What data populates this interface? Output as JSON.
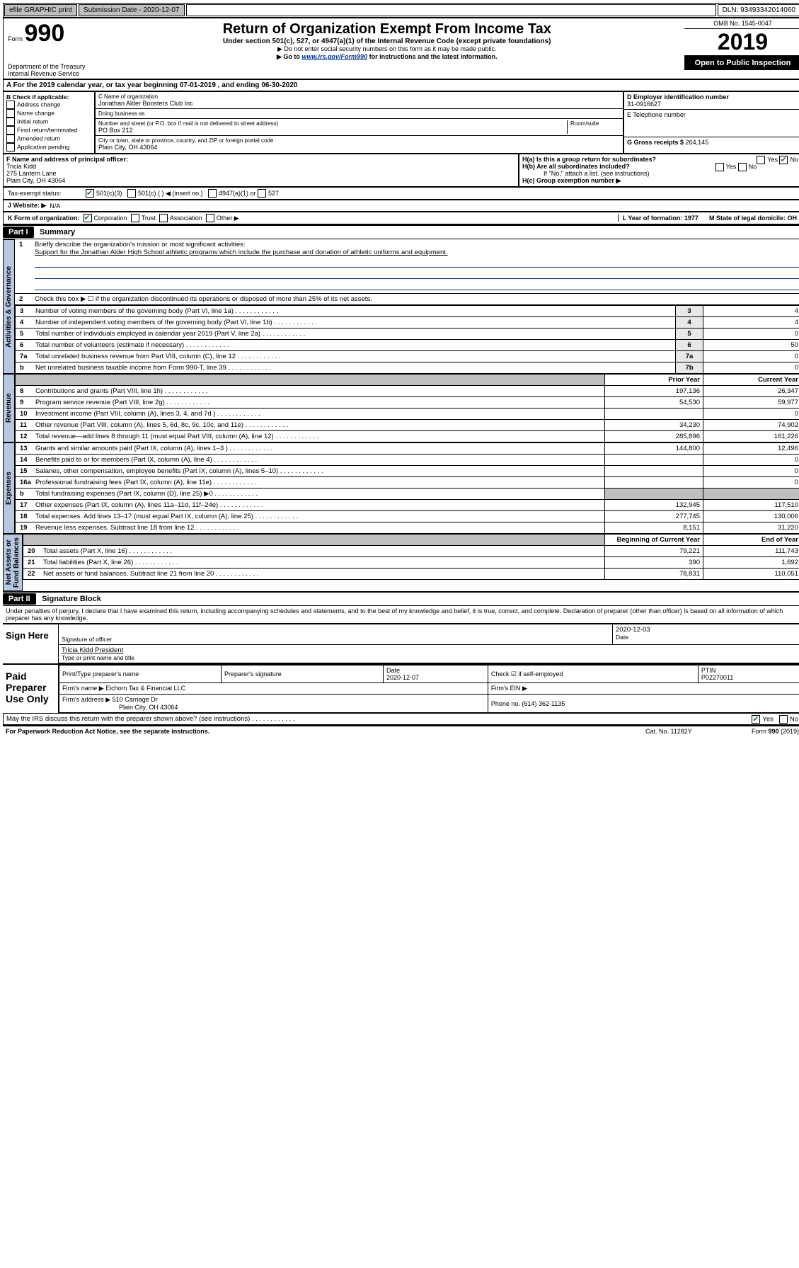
{
  "topbar": {
    "efile": "efile GRAPHIC print",
    "submission_label": "Submission Date - 2020-12-07",
    "dln": "DLN: 93493342014060"
  },
  "header": {
    "form_word": "Form",
    "form_num": "990",
    "title": "Return of Organization Exempt From Income Tax",
    "sub1": "Under section 501(c), 527, or 4947(a)(1) of the Internal Revenue Code (except private foundations)",
    "sub2": "▶ Do not enter social security numbers on this form as it may be made public.",
    "sub3_pre": "▶ Go to ",
    "sub3_link": "www.irs.gov/Form990",
    "sub3_post": " for instructions and the latest information.",
    "dept": "Department of the Treasury\nInternal Revenue Service",
    "omb": "OMB No. 1545-0047",
    "year": "2019",
    "open": "Open to Public Inspection"
  },
  "row_a": "A   For the 2019 calendar year, or tax year beginning 07-01-2019     , and ending 06-30-2020",
  "box_b": {
    "head": "B Check if applicable:",
    "items": [
      "Address change",
      "Name change",
      "Initial return",
      "Final return/terminated",
      "Amended return",
      "Application pending"
    ]
  },
  "box_c": {
    "name_lbl": "C Name of organization",
    "name": "Jonathan Alder Boosters Club Inc",
    "dba_lbl": "Doing business as",
    "dba": "",
    "addr_lbl": "Number and street (or P.O. box if mail is not delivered to street address)",
    "room_lbl": "Room/suite",
    "addr": "PO Box 212",
    "city_lbl": "City or town, state or province, country, and ZIP or foreign postal code",
    "city": "Plain City, OH  43064"
  },
  "box_d": {
    "lbl": "D Employer identification number",
    "val": "31-0916627"
  },
  "box_e": {
    "lbl": "E Telephone number",
    "val": ""
  },
  "box_g": {
    "lbl": "G Gross receipts $",
    "val": "264,145"
  },
  "box_f": {
    "lbl": "F  Name and address of principal officer:",
    "line1": "Tricia Kidd",
    "line2": "275 Lantern Lane",
    "line3": "Plain City, OH  43064"
  },
  "box_h": {
    "ha": "H(a)  Is this a group return for subordinates?",
    "hb": "H(b)  Are all subordinates included?",
    "hb_note": "If \"No,\" attach a list. (see instructions)",
    "hc": "H(c)  Group exemption number ▶",
    "yes": "Yes",
    "no": "No"
  },
  "tax_status": {
    "lbl": "Tax-exempt status:",
    "o1": "501(c)(3)",
    "o2": "501(c) (   ) ◀ (insert no.)",
    "o3": "4947(a)(1) or",
    "o4": "527"
  },
  "website": {
    "lbl": "J   Website: ▶",
    "val": "N/A"
  },
  "row_k": {
    "lbl": "K Form of organization:",
    "o1": "Corporation",
    "o2": "Trust",
    "o3": "Association",
    "o4": "Other ▶",
    "l": "L Year of formation: 1977",
    "m": "M State of legal domicile: OH"
  },
  "part1": {
    "bar": "Part I",
    "title": "Summary"
  },
  "summary": {
    "vlabels": {
      "ag": "Activities & Governance",
      "rev": "Revenue",
      "exp": "Expenses",
      "na": "Net Assets or\nFund Balances"
    },
    "q1": "Briefly describe the organization's mission or most significant activities:",
    "q1v": "Support for the Jonathan Alder High School athletic programs which include the purchase and donation of athletic uniforms and equipment.",
    "q2": "Check this box ▶ ☐  if the organization discontinued its operations or disposed of more than 25% of its net assets.",
    "lines_ag": [
      {
        "n": "3",
        "t": "Number of voting members of the governing body (Part VI, line 1a)",
        "c": "3",
        "v": "4"
      },
      {
        "n": "4",
        "t": "Number of independent voting members of the governing body (Part VI, line 1b)",
        "c": "4",
        "v": "4"
      },
      {
        "n": "5",
        "t": "Total number of individuals employed in calendar year 2019 (Part V, line 2a)",
        "c": "5",
        "v": "0"
      },
      {
        "n": "6",
        "t": "Total number of volunteers (estimate if necessary)",
        "c": "6",
        "v": "50"
      },
      {
        "n": "7a",
        "t": "Total unrelated business revenue from Part VIII, column (C), line 12",
        "c": "7a",
        "v": "0"
      },
      {
        "n": "b",
        "t": "Net unrelated business taxable income from Form 990-T, line 39",
        "c": "7b",
        "v": "0"
      }
    ],
    "col_py": "Prior Year",
    "col_cy": "Current Year",
    "col_by": "Beginning of Current Year",
    "col_ey": "End of Year",
    "rev": [
      {
        "n": "8",
        "t": "Contributions and grants (Part VIII, line 1h)",
        "p": "197,136",
        "c": "26,347"
      },
      {
        "n": "9",
        "t": "Program service revenue (Part VIII, line 2g)",
        "p": "54,530",
        "c": "59,977"
      },
      {
        "n": "10",
        "t": "Investment income (Part VIII, column (A), lines 3, 4, and 7d )",
        "p": "",
        "c": "0"
      },
      {
        "n": "11",
        "t": "Other revenue (Part VIII, column (A), lines 5, 6d, 8c, 9c, 10c, and 11e)",
        "p": "34,230",
        "c": "74,902"
      },
      {
        "n": "12",
        "t": "Total revenue—add lines 8 through 11 (must equal Part VIII, column (A), line 12)",
        "p": "285,896",
        "c": "161,226"
      }
    ],
    "exp": [
      {
        "n": "13",
        "t": "Grants and similar amounts paid (Part IX, column (A), lines 1–3 )",
        "p": "144,800",
        "c": "12,496"
      },
      {
        "n": "14",
        "t": "Benefits paid to or for members (Part IX, column (A), line 4)",
        "p": "",
        "c": "0"
      },
      {
        "n": "15",
        "t": "Salaries, other compensation, employee benefits (Part IX, column (A), lines 5–10)",
        "p": "",
        "c": "0"
      },
      {
        "n": "16a",
        "t": "Professional fundraising fees (Part IX, column (A), line 11e)",
        "p": "",
        "c": "0"
      },
      {
        "n": "b",
        "t": "Total fundraising expenses (Part IX, column (D), line 25) ▶0",
        "p": "__SHADE__",
        "c": "__SHADE__"
      },
      {
        "n": "17",
        "t": "Other expenses (Part IX, column (A), lines 11a–11d, 11f–24e)",
        "p": "132,945",
        "c": "117,510"
      },
      {
        "n": "18",
        "t": "Total expenses. Add lines 13–17 (must equal Part IX, column (A), line 25)",
        "p": "277,745",
        "c": "130,006"
      },
      {
        "n": "19",
        "t": "Revenue less expenses. Subtract line 18 from line 12",
        "p": "8,151",
        "c": "31,220"
      }
    ],
    "na": [
      {
        "n": "20",
        "t": "Total assets (Part X, line 16)",
        "p": "79,221",
        "c": "111,743"
      },
      {
        "n": "21",
        "t": "Total liabilities (Part X, line 26)",
        "p": "390",
        "c": "1,692"
      },
      {
        "n": "22",
        "t": "Net assets or fund balances. Subtract line 21 from line 20",
        "p": "78,831",
        "c": "110,051"
      }
    ]
  },
  "part2": {
    "bar": "Part II",
    "title": "Signature Block"
  },
  "perjury": "Under penalties of perjury, I declare that I have examined this return, including accompanying schedules and statements, and to the best of my knowledge and belief, it is true, correct, and complete. Declaration of preparer (other than officer) is based on all information of which preparer has any knowledge.",
  "sign": {
    "left": "Sign Here",
    "sig_lbl": "Signature of officer",
    "date_lbl": "Date",
    "date": "2020-12-03",
    "name": "Tricia Kidd  President",
    "name_lbl": "Type or print name and title"
  },
  "prep": {
    "left": "Paid Preparer Use Only",
    "h1": "Print/Type preparer's name",
    "h2": "Preparer's signature",
    "h3": "Date",
    "h3v": "2020-12-07",
    "h4": "Check ☑ if self-employed",
    "h5": "PTIN",
    "h5v": "P02270011",
    "firm_lbl": "Firm's name    ▶",
    "firm": "Eichorn Tax & Financial LLC",
    "ein_lbl": "Firm's EIN ▶",
    "addr_lbl": "Firm's address ▶",
    "addr1": "510 Carriage Dr",
    "addr2": "Plain City, OH  43064",
    "phone_lbl": "Phone no.",
    "phone": "(614) 362-1135"
  },
  "discuss": {
    "t": "May the IRS discuss this return with the preparer shown above? (see instructions)",
    "yes": "Yes",
    "no": "No"
  },
  "footer": {
    "l": "For Paperwork Reduction Act Notice, see the separate instructions.",
    "m": "Cat. No. 11282Y",
    "r": "Form 990 (2019)"
  }
}
